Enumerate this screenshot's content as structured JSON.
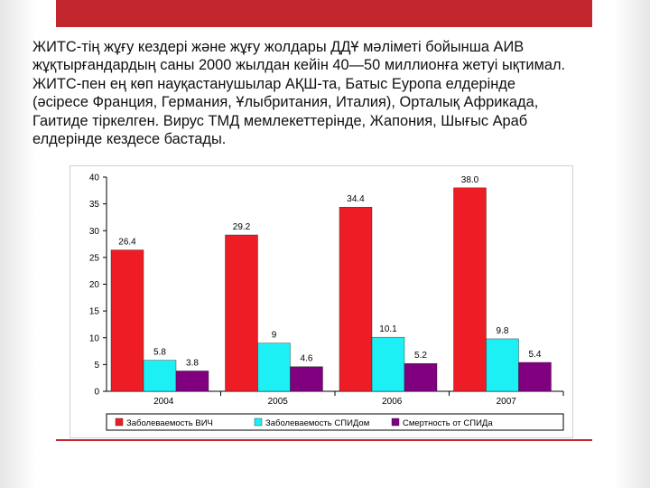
{
  "slide": {
    "text_lines": [
      "ЖИТС-тің жұғу кездері және жұғу жолдары ДДҰ мәліметі бойынша АИВ",
      "жұқтырғандардың саны 2000 жылдан кейін 40—50 миллионға жетуі ықтимал.",
      "ЖИТС-пен ең көп науқастанушылар АҚШ-та, Батыс Еуропа елдерінде",
      "(әсіресе Франция, Германия, Ұлыбритания, Италия), Орталық Африкада,",
      "Гаитиде тіркелген. Вирус ТМД мемлекеттерінде, Жапония, Шығыс Араб",
      "елдерінде кездесе бастады."
    ]
  },
  "colors": {
    "accent": "#c1272d",
    "series": [
      "#ee1c25",
      "#1cf0f5",
      "#800080"
    ]
  },
  "chart_data": {
    "type": "bar",
    "categories": [
      "2004",
      "2005",
      "2006",
      "2007"
    ],
    "series": [
      {
        "name": "Заболеваемость ВИЧ",
        "values": [
          26.4,
          29.2,
          34.4,
          38.0
        ],
        "labels": [
          "26.4",
          "29.2",
          "34.4",
          "38.0"
        ]
      },
      {
        "name": "Заболеваемость СПИДом",
        "values": [
          5.8,
          9.0,
          10.1,
          9.8
        ],
        "labels": [
          "5.8",
          "9",
          "10.1",
          "9.8"
        ]
      },
      {
        "name": "Смертность от СПИДа",
        "values": [
          3.8,
          4.6,
          5.2,
          5.4
        ],
        "labels": [
          "3.8",
          "4.6",
          "5.2",
          "5.4"
        ]
      }
    ],
    "ylim": [
      0,
      40
    ],
    "yticks": [
      "0",
      "5",
      "10",
      "15",
      "20",
      "25",
      "30",
      "35",
      "40"
    ],
    "grid": false,
    "legend_position": "bottom",
    "title": "",
    "xlabel": "",
    "ylabel": ""
  }
}
